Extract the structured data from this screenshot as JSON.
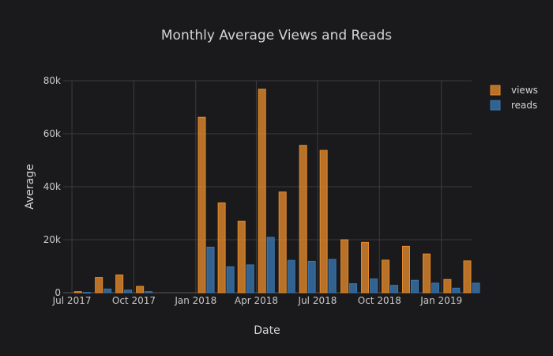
{
  "chart_data": {
    "type": "bar",
    "title": "Monthly Average Views and Reads",
    "xlabel": "Date",
    "ylabel": "Average",
    "ylim": [
      0,
      80000
    ],
    "y_ticks": [
      0,
      20000,
      40000,
      60000,
      80000
    ],
    "y_tick_labels": [
      "0",
      "20k",
      "40k",
      "60k",
      "80k"
    ],
    "x_ticks": [
      "2017-07",
      "2017-10",
      "2018-01",
      "2018-04",
      "2018-07",
      "2018-10",
      "2019-01"
    ],
    "x_tick_labels": [
      "Jul 2017",
      "Oct 2017",
      "Jan 2018",
      "Apr 2018",
      "Jul 2018",
      "Oct 2018",
      "Jan 2019"
    ],
    "x_range": [
      "2017-06-18",
      "2019-02-15"
    ],
    "grid": true,
    "legend_position": "top-right",
    "categories": [
      "2017-07",
      "2017-08",
      "2017-09",
      "2017-10",
      "2017-11",
      "2017-12",
      "2018-01",
      "2018-02",
      "2018-03",
      "2018-04",
      "2018-05",
      "2018-06",
      "2018-07",
      "2018-08",
      "2018-09",
      "2018-10",
      "2018-11",
      "2018-12",
      "2019-01",
      "2019-02"
    ],
    "series": [
      {
        "name": "views",
        "color": "#e58b2b",
        "values": [
          400,
          5800,
          6700,
          2400,
          null,
          null,
          66200,
          33900,
          27000,
          76800,
          38000,
          55600,
          53700,
          20000,
          19000,
          12300,
          17500,
          14600,
          5000,
          12000
        ]
      },
      {
        "name": "reads",
        "color": "#3a77b0",
        "values": [
          100,
          1400,
          1000,
          400,
          null,
          null,
          17200,
          9800,
          10500,
          20900,
          12200,
          11800,
          12600,
          3400,
          5200,
          2800,
          4700,
          3600,
          1700,
          3600
        ]
      }
    ]
  }
}
